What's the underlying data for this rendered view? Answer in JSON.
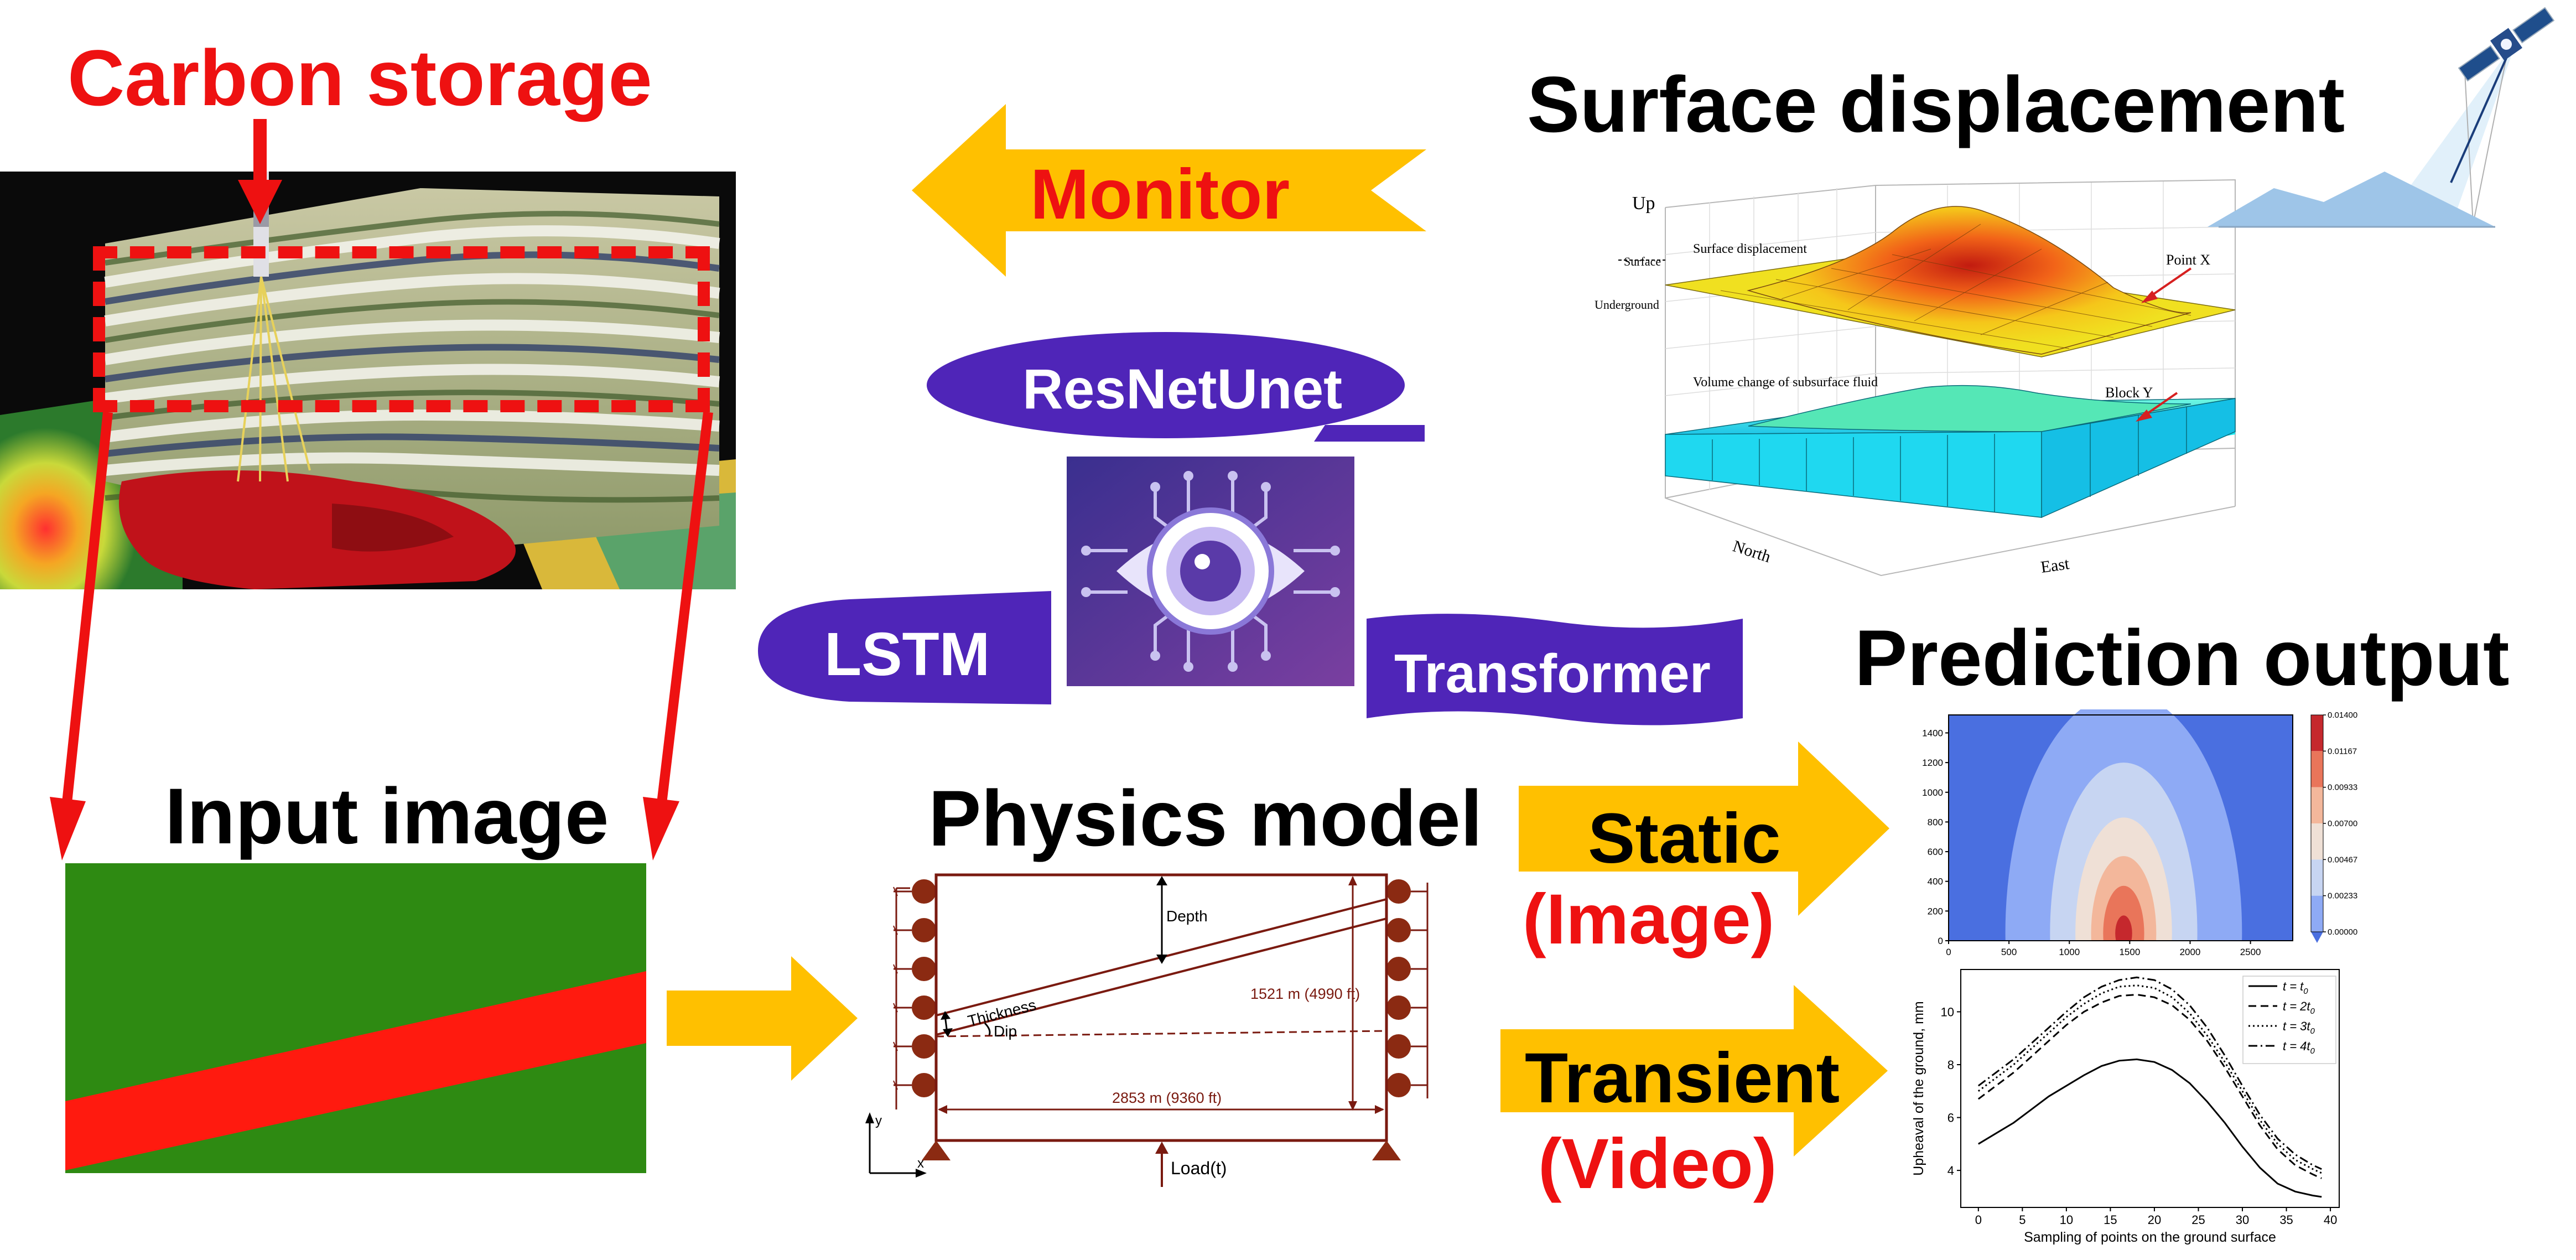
{
  "colors": {
    "red": "#ee1111",
    "yellow": "#ffc000",
    "purple": "#4f25b8",
    "dark_red": "#7a1a10",
    "green": "#2e8a12",
    "cyan": "#2ee6f2"
  },
  "titles": {
    "carbon_storage": "Carbon storage",
    "surface_displacement": "Surface displacement",
    "input_image": "Input image",
    "physics_model": "Physics model",
    "prediction_output": "Prediction output"
  },
  "arrows": {
    "monitor": "Monitor",
    "static_line1": "Static",
    "static_line2": "(Image)",
    "transient_line1": "Transient",
    "transient_line2": "(Video)"
  },
  "models": {
    "resnetunet": "ResNetUnet",
    "lstm": "LSTM",
    "transformer": "Transformer"
  },
  "surface_diagram": {
    "up": "Up",
    "surface": "Surface",
    "underground": "Underground",
    "surface_displacement": "Surface displacement",
    "point_x": "Point X",
    "volume_change": "Volume change of subsurface fluid",
    "block_y": "Block Y",
    "north": "North",
    "east": "East"
  },
  "physics_diagram": {
    "depth": "Depth",
    "thickness": "Thickness",
    "dip": "Dip",
    "vertical_dim": "1521 m (4990 ft)",
    "horizontal_dim": "2853 m (9360 ft)",
    "load": "Load(t)",
    "axis_x": "x",
    "axis_y": "y"
  },
  "chart_data": [
    {
      "type": "heatmap",
      "title": "",
      "x_ticks": [
        "0",
        "500",
        "1000",
        "1500",
        "2000",
        "2500"
      ],
      "y_ticks": [
        "0",
        "200",
        "400",
        "600",
        "800",
        "1000",
        "1200",
        "1400"
      ],
      "xlim": [
        0,
        2850
      ],
      "ylim": [
        0,
        1521
      ],
      "colorbar_ticks": [
        "0.01400",
        "0.01167",
        "0.00933",
        "0.00700",
        "0.00467",
        "0.00233",
        "0.00000"
      ],
      "peak": {
        "x": 1450,
        "y": 50,
        "value": 0.014
      },
      "levels": [
        0.0,
        0.00233,
        0.00467,
        0.007,
        0.00933,
        0.01167,
        0.014
      ],
      "level_colors": [
        "#4a6fe0",
        "#8eaaf5",
        "#c7d5f2",
        "#efe0d6",
        "#f3b79b",
        "#e9755a",
        "#c5282d"
      ]
    },
    {
      "type": "line",
      "xlabel": "Sampling of points on the ground surface",
      "ylabel": "Upheaval of the ground, mm",
      "xlim": [
        -2,
        41
      ],
      "ylim": [
        2.6,
        11.6
      ],
      "x_ticks": [
        0,
        5,
        10,
        15,
        20,
        25,
        30,
        35,
        40
      ],
      "y_ticks": [
        4,
        6,
        8,
        10
      ],
      "x": [
        0,
        2,
        4,
        6,
        8,
        10,
        12,
        14,
        16,
        18,
        20,
        22,
        24,
        26,
        28,
        30,
        32,
        34,
        36,
        38,
        39
      ],
      "series": [
        {
          "name": "t = t0",
          "label_main": "t = t",
          "label_sub": "0",
          "dash": "",
          "values": [
            5.0,
            5.4,
            5.8,
            6.3,
            6.8,
            7.2,
            7.6,
            7.95,
            8.15,
            8.2,
            8.1,
            7.8,
            7.3,
            6.6,
            5.8,
            4.9,
            4.1,
            3.5,
            3.2,
            3.05,
            3.0
          ]
        },
        {
          "name": "t = 2t0",
          "label_main": "t = 2t",
          "label_sub": "0",
          "dash": "14,8",
          "values": [
            6.7,
            7.2,
            7.7,
            8.3,
            8.9,
            9.5,
            10.0,
            10.35,
            10.6,
            10.65,
            10.55,
            10.25,
            9.7,
            8.9,
            7.9,
            6.8,
            5.7,
            4.8,
            4.2,
            3.85,
            3.7
          ]
        },
        {
          "name": "t = 3t0",
          "label_main": "t = 3t",
          "label_sub": "0",
          "dash": "3,5",
          "values": [
            7.0,
            7.5,
            8.0,
            8.6,
            9.2,
            9.8,
            10.3,
            10.7,
            10.95,
            11.0,
            10.9,
            10.55,
            9.95,
            9.1,
            8.1,
            7.0,
            5.9,
            5.0,
            4.4,
            4.05,
            3.9
          ]
        },
        {
          "name": "t = 4t0",
          "label_main": "t = 4t",
          "label_sub": "0",
          "dash": "16,6,3,6",
          "values": [
            7.2,
            7.7,
            8.2,
            8.8,
            9.4,
            10.0,
            10.55,
            10.95,
            11.2,
            11.3,
            11.2,
            10.85,
            10.25,
            9.4,
            8.35,
            7.2,
            6.1,
            5.2,
            4.6,
            4.2,
            4.05
          ]
        }
      ]
    }
  ]
}
